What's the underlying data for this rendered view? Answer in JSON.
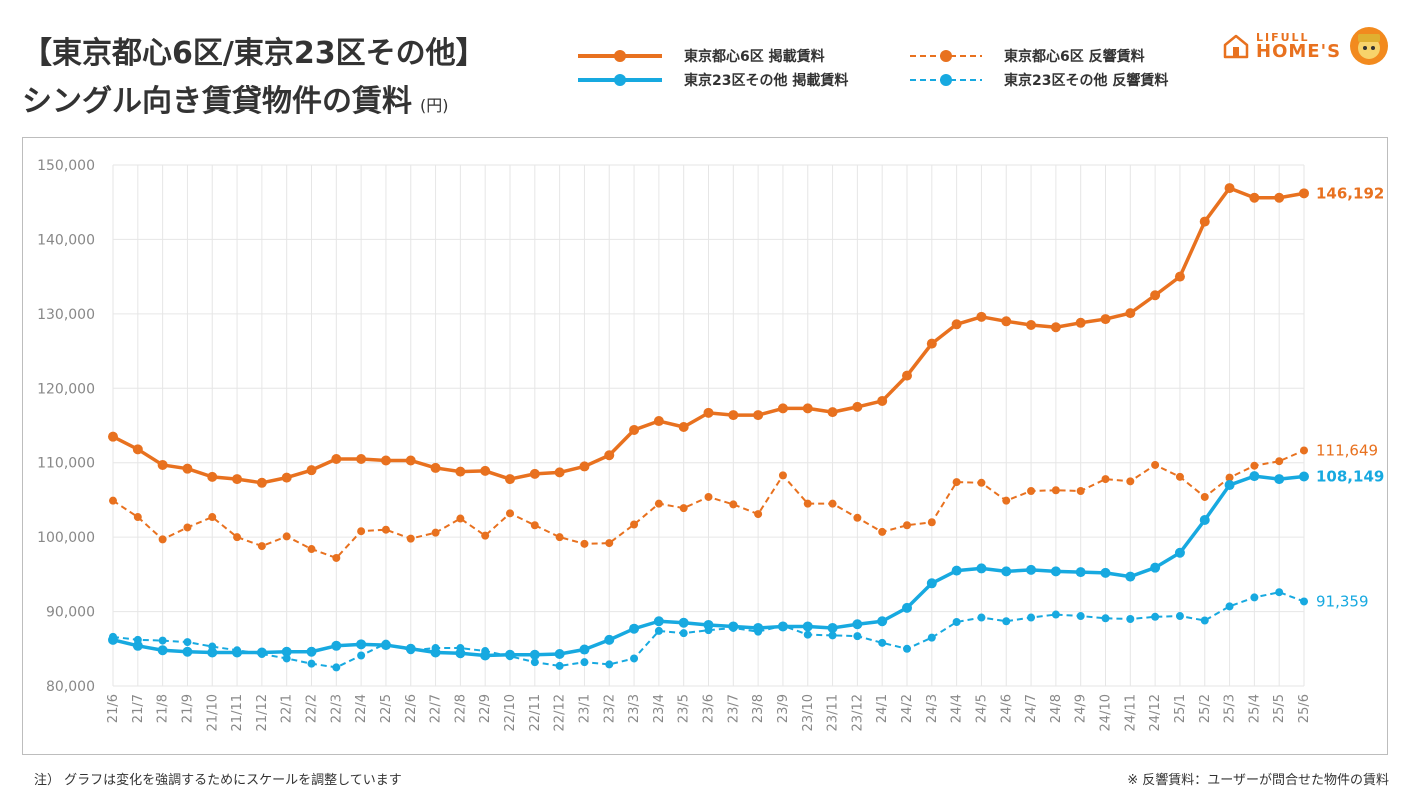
{
  "title": {
    "line1": "【東京都心6区/東京23区その他】",
    "line2": "シングル向き賃貸物件の賃料",
    "unit": "(円)"
  },
  "logo": {
    "small": "LIFULL",
    "big": "HOME'S"
  },
  "footnote_left": "注） グラフは変化を強調するためにスケールを調整しています",
  "footnote_right": "※ 反響賃料：ユーザーが問合せた物件の賃料",
  "colors": {
    "orange": "#e8711f",
    "blue": "#17a9e0",
    "grid": "#e6e6e6",
    "axis_text": "#888888"
  },
  "chart_data": {
    "type": "line",
    "ylim": [
      80000,
      150000
    ],
    "yticks": [
      "80,000",
      "90,000",
      "100,000",
      "110,000",
      "120,000",
      "130,000",
      "140,000",
      "150,000"
    ],
    "grid": true,
    "legend_position": "top",
    "categories": [
      "21/6",
      "21/7",
      "21/8",
      "21/9",
      "21/10",
      "21/11",
      "21/12",
      "22/1",
      "22/2",
      "22/3",
      "22/4",
      "22/5",
      "22/6",
      "22/7",
      "22/8",
      "22/9",
      "22/10",
      "22/11",
      "22/12",
      "23/1",
      "23/2",
      "23/3",
      "23/4",
      "23/5",
      "23/6",
      "23/7",
      "23/8",
      "23/9",
      "23/10",
      "23/11",
      "23/12",
      "24/1",
      "24/2",
      "24/3",
      "24/4",
      "24/5",
      "24/6",
      "24/7",
      "24/8",
      "24/9",
      "24/10",
      "24/11",
      "24/12",
      "25/1",
      "25/2",
      "25/3",
      "25/4",
      "25/5",
      "25/6"
    ],
    "series": [
      {
        "name": "東京都心6区 掲載賃料",
        "color": "#e8711f",
        "dashed": false,
        "end_label": "146,192",
        "values": [
          113500,
          111800,
          109700,
          109200,
          108100,
          107800,
          107300,
          108000,
          109000,
          110500,
          110500,
          110300,
          110300,
          109300,
          108800,
          108900,
          107800,
          108500,
          108700,
          109500,
          111000,
          114400,
          115600,
          114800,
          116700,
          116400,
          116400,
          117300,
          117300,
          116800,
          117500,
          118300,
          121700,
          126000,
          128600,
          129600,
          129000,
          128500,
          128200,
          128800,
          129300,
          130100,
          132500,
          135000,
          142400,
          146900,
          145600,
          145600,
          146192
        ]
      },
      {
        "name": "東京都心6区 反響賃料",
        "color": "#e8711f",
        "dashed": true,
        "end_label": "111,649",
        "values": [
          104900,
          102700,
          99700,
          101300,
          102700,
          100000,
          98800,
          100100,
          98400,
          97200,
          100800,
          101000,
          99800,
          100600,
          102500,
          100200,
          103200,
          101600,
          100000,
          99100,
          99200,
          101700,
          104500,
          103900,
          105400,
          104400,
          103100,
          108300,
          104500,
          104500,
          102600,
          100700,
          101600,
          102000,
          107400,
          107300,
          104900,
          106200,
          106300,
          106200,
          107800,
          107500,
          109700,
          108100,
          105400,
          108000,
          109600,
          110200,
          111649
        ]
      },
      {
        "name": "東京23区その他 掲載賃料",
        "color": "#17a9e0",
        "dashed": false,
        "end_label": "108,149",
        "values": [
          86200,
          85400,
          84800,
          84600,
          84500,
          84500,
          84500,
          84600,
          84600,
          85400,
          85600,
          85500,
          85000,
          84500,
          84400,
          84100,
          84200,
          84200,
          84300,
          84900,
          86200,
          87700,
          88700,
          88500,
          88200,
          88000,
          87800,
          88000,
          88000,
          87800,
          88300,
          88700,
          90500,
          93800,
          95500,
          95800,
          95400,
          95600,
          95400,
          95300,
          95200,
          94700,
          95900,
          97900,
          102300,
          107000,
          108200,
          107800,
          108149
        ]
      },
      {
        "name": "東京23区その他 反響賃料",
        "color": "#17a9e0",
        "dashed": true,
        "end_label": "91,359",
        "values": [
          86600,
          86200,
          86100,
          85900,
          85300,
          84800,
          84300,
          83700,
          83000,
          82500,
          84100,
          85700,
          84800,
          85100,
          85100,
          84700,
          84000,
          83200,
          82700,
          83200,
          82900,
          83700,
          87400,
          87100,
          87500,
          87800,
          87300,
          88100,
          86900,
          86800,
          86700,
          85800,
          85000,
          86500,
          88600,
          89200,
          88700,
          89200,
          89600,
          89400,
          89100,
          89000,
          89300,
          89400,
          88800,
          90700,
          91900,
          92600,
          91359
        ]
      }
    ]
  }
}
